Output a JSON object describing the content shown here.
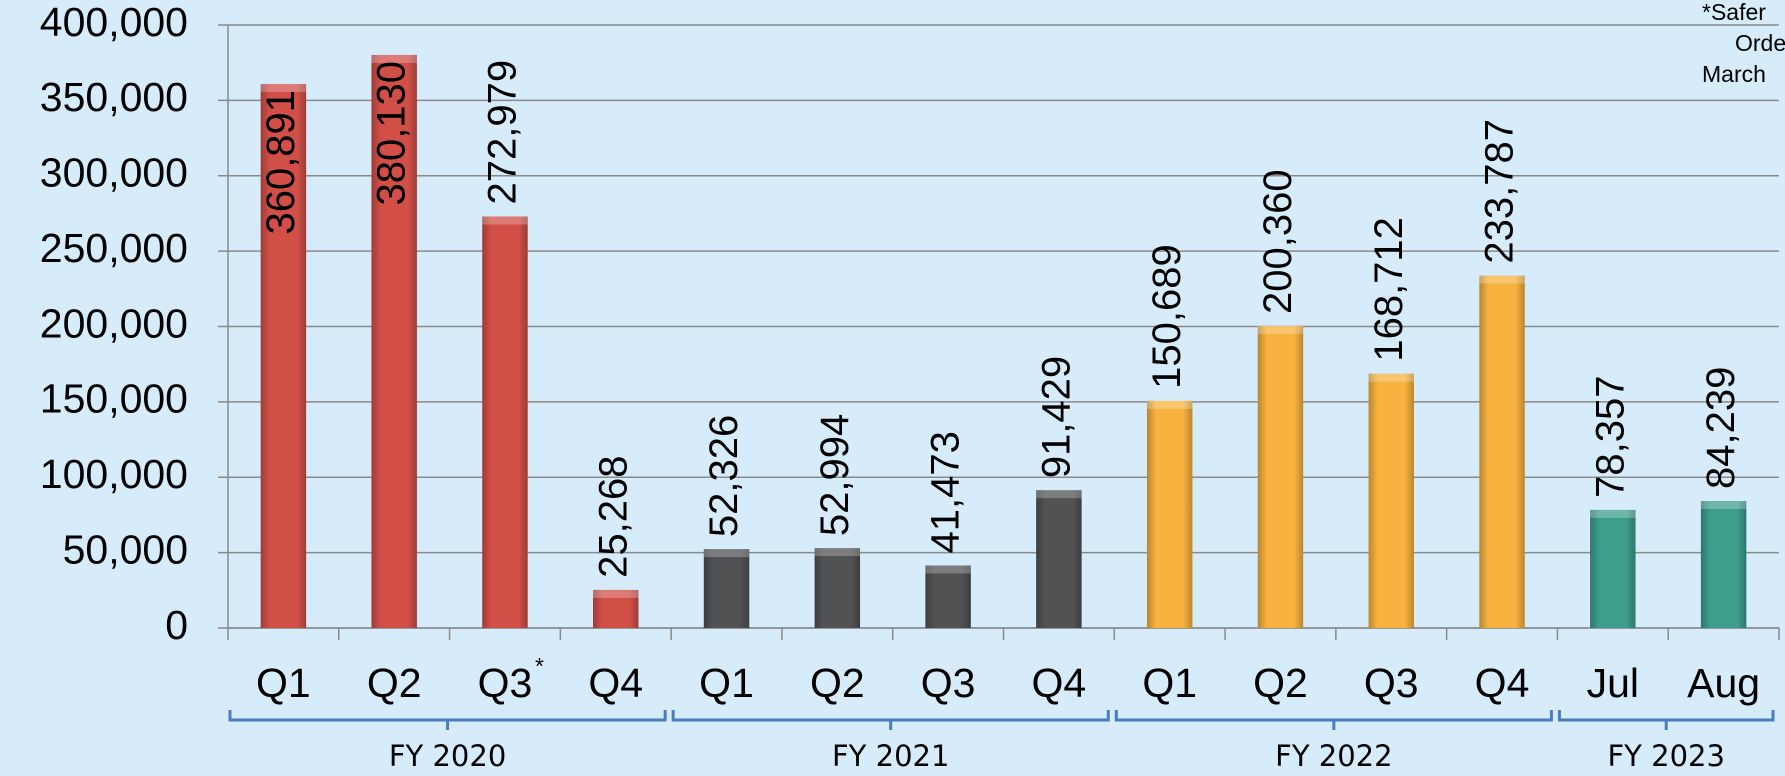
{
  "chart_data": {
    "type": "bar",
    "categories": [
      "Q1",
      "Q2",
      "Q3",
      "Q4",
      "Q1",
      "Q2",
      "Q3",
      "Q4",
      "Q1",
      "Q2",
      "Q3",
      "Q4",
      "Jul",
      "Aug"
    ],
    "category_marks": [
      {
        "index": 2,
        "text": "*"
      }
    ],
    "values": [
      360891,
      380130,
      272979,
      25268,
      52326,
      52994,
      41473,
      91429,
      150689,
      200360,
      168712,
      233787,
      78357,
      84239
    ],
    "value_labels": [
      "360,891",
      "380,130",
      "272,979",
      "25,268",
      "52,326",
      "52,994",
      "41,473",
      "91,429",
      "150,689",
      "200,360",
      "168,712",
      "233,787",
      "78,357",
      "84,239"
    ],
    "groups": [
      {
        "label": "FY 2020",
        "start": 0,
        "count": 4,
        "color": "#d24f48"
      },
      {
        "label": "FY 2021",
        "start": 4,
        "count": 4,
        "color": "#505254"
      },
      {
        "label": "FY 2022",
        "start": 8,
        "count": 4,
        "color": "#f7b23f"
      },
      {
        "label": "FY 2023",
        "start": 12,
        "count": 2,
        "color": "#3d9e8c"
      }
    ],
    "ylim": [
      0,
      400000
    ],
    "yticks": [
      0,
      {
        "value": 50000,
        "label": "50,000"
      },
      {
        "value": 100000,
        "label": "100,000"
      },
      {
        "value": 150000,
        "label": "150,000"
      },
      {
        "value": 200000,
        "label": "200,000"
      },
      {
        "value": 250000,
        "label": "250,000"
      },
      {
        "value": 300000,
        "label": "300,000"
      },
      {
        "value": 350000,
        "label": "350,000"
      },
      {
        "value": 400000,
        "label": "400,000"
      }
    ],
    "grid": true,
    "annotation": [
      "*Safer",
      "Orde",
      "March"
    ]
  }
}
